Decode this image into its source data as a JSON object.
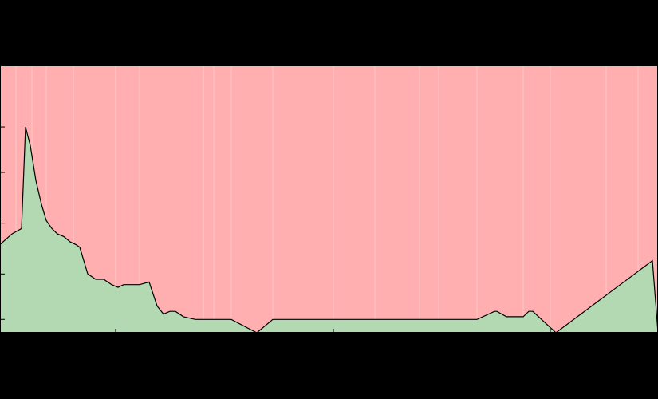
{
  "colors": {
    "background": "#000000",
    "upper_fill": "#ffafaf",
    "lower_fill": "#b3d9b3",
    "line": "#000000",
    "gridline": "#ffd6d6"
  },
  "chart_data": {
    "type": "area",
    "title": "",
    "xlabel": "",
    "ylabel": "",
    "xlim": [
      0,
      825
    ],
    "ylim": [
      0,
      1
    ],
    "grid": "vertical",
    "x": [
      0,
      15,
      27,
      32,
      38,
      45,
      52,
      58,
      65,
      72,
      80,
      88,
      95,
      100,
      110,
      120,
      130,
      140,
      148,
      155,
      165,
      175,
      187,
      197,
      205,
      213,
      220,
      230,
      245,
      255,
      290,
      322,
      342,
      400,
      500,
      598,
      620,
      623,
      635,
      656,
      663,
      668,
      697,
      818,
      825
    ],
    "lower_share": [
      0.33,
      0.37,
      0.39,
      0.77,
      0.7,
      0.57,
      0.48,
      0.42,
      0.39,
      0.37,
      0.36,
      0.34,
      0.33,
      0.32,
      0.22,
      0.2,
      0.2,
      0.18,
      0.17,
      0.18,
      0.18,
      0.18,
      0.19,
      0.1,
      0.07,
      0.08,
      0.08,
      0.06,
      0.05,
      0.05,
      0.05,
      0.0,
      0.05,
      0.05,
      0.05,
      0.05,
      0.08,
      0.08,
      0.06,
      0.06,
      0.08,
      0.08,
      0.0,
      0.27,
      0.0
    ],
    "vertical_gridlines_x": [
      20,
      40,
      58,
      92,
      145,
      175,
      255,
      268,
      290,
      342,
      418,
      470,
      526,
      550,
      598,
      656,
      690,
      760,
      800
    ]
  }
}
